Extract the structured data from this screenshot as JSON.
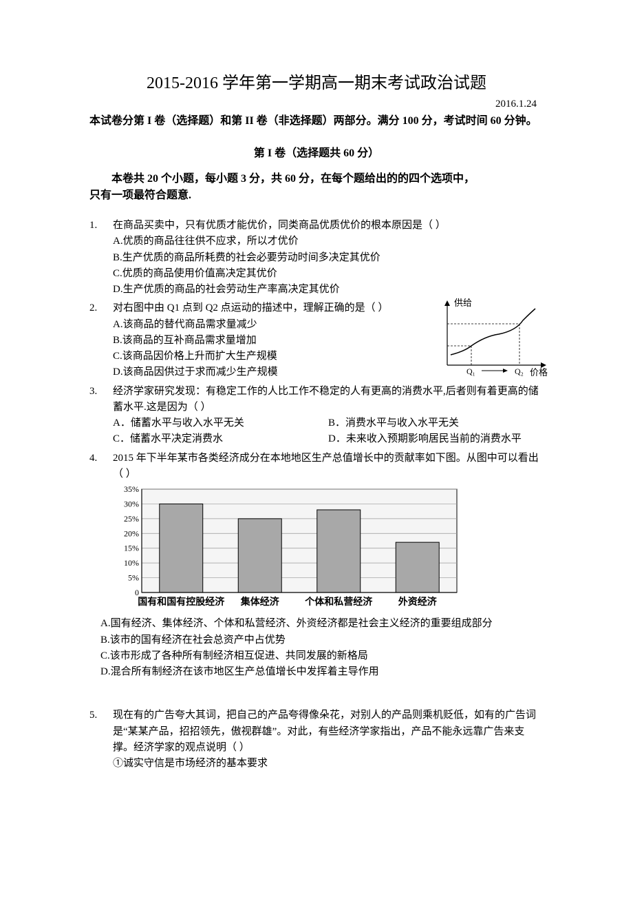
{
  "title": "2015-2016 学年第一学期高一期末考试政治试题",
  "date": "2016.1.24",
  "intro": "本试卷分第 I 卷（选择题）和第 II 卷（非选择题）两部分。满分 100 分，考试时间 60 分钟。",
  "section1_title": "第 I 卷（选择题共 60 分）",
  "instructions_l1": "本卷共 20 个小题，每小题 3 分，共 60 分，在每个题给出的的四个选项中，",
  "instructions_l2": "只有一项最符合题意.",
  "q1": {
    "stem": "在商品买卖中，只有优质才能优价，同类商品优质优价的根本原因是（    ）",
    "A": "A.优质的商品往往供不应求，所以才优价",
    "B": "B.生产优质的商品所耗费的社会必要劳动时间多决定其优价",
    "C": "C.优质的商品使用价值高决定其优价",
    "D": "D.生产优质的商品的社会劳动生产率高决定其优价"
  },
  "q2": {
    "stem": "对右图中由 Q1 点到 Q2 点运动的描述中，理解正确的是（     ）",
    "A": "A.该商品的替代商品需求量减少",
    "B": "B.该商品的互补商品需求量增加",
    "C": "C.该商品因价格上升而扩大生产规模",
    "D": "D.该商品因供过于求而减少生产规模"
  },
  "supply_chart": {
    "label_supply": "供给",
    "x_axis": "价格",
    "q1_label": "Q₁",
    "q2_label": "Q₂",
    "line_color": "#000000",
    "axis_color": "#000000"
  },
  "q3": {
    "stem": "经济学家研究发现：有稳定工作的人比工作不稳定的人有更高的消费水平,后者则有着更高的储蓄水平.这是因为（    ）",
    "A": "A．储蓄水平与收入水平无关",
    "B": "B．消费水平与收入水平无关",
    "C": "C．储蓄水平决定消费水",
    "D": "D．未来收入预期影响居民当前的消费水平"
  },
  "q4": {
    "stem": "2015 年下半年某市各类经济成分在本地地区生产总值增长中的贡献率如下图。从图中可以看出（    ）",
    "A": "A.国有经济、集体经济、个体和私营经济、外资经济都是社会主义经济的重要组成部分",
    "B": "B.该市的国有经济在社会总资产中占优势",
    "C": "C.该市形成了各种所有制经济相互促进、共同发展的新格局",
    "D": "D.混合所有制经济在该市地区生产总值增长中发挥着主导作用"
  },
  "bar_chart": {
    "type": "bar",
    "categories": [
      "国有和国有控股经济",
      "集体经济",
      "个体和私营经济",
      "外资经济"
    ],
    "values": [
      30,
      25,
      28,
      17
    ],
    "ylim": [
      0,
      35
    ],
    "ytick_step": 5,
    "y_labels": [
      "0",
      "5%",
      "10%",
      "15%",
      "20%",
      "25%",
      "30%",
      "35%"
    ],
    "bar_color": "#a8a8a8",
    "bar_border": "#000000",
    "grid_color": "#999999",
    "background_color": "#f5f5f5",
    "axis_color": "#000000",
    "label_fontsize": 14
  },
  "q5": {
    "stem": "现在有的广告夸大其词，把自己的产品夸得像朵花，对别人的产品则乘机贬低，如有的广告词是“某某产品，招招领先，傲视群雄”。对此，有些经济学家指出，产品不能永远靠广告来支撑。经济学家的观点说明（     ）",
    "s1": "①诚实守信是市场经济的基本要求"
  }
}
